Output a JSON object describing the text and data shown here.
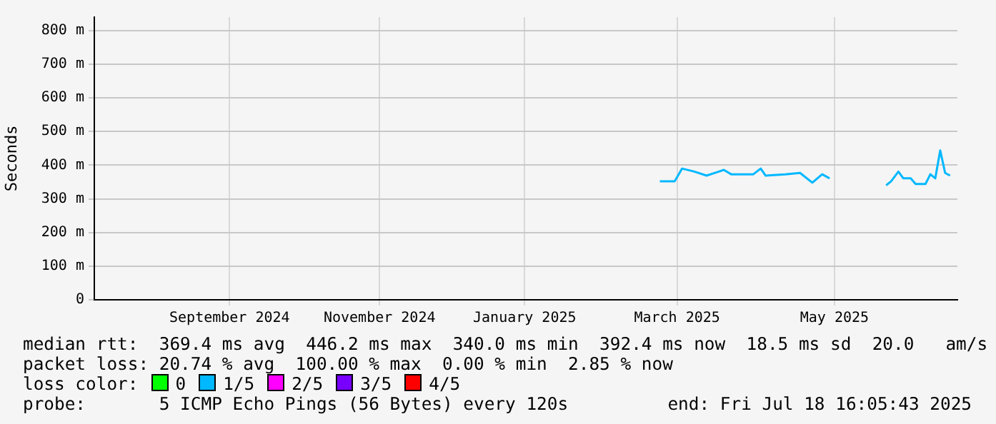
{
  "chart_data": {
    "type": "line",
    "ylabel": "Seconds",
    "x": [
      "2025-03-10",
      "2025-03-16",
      "2025-03-18",
      "2025-03-19",
      "2025-03-24",
      "2025-03-29",
      "2025-04-03",
      "2025-04-05",
      "2025-04-08",
      "2025-04-17",
      "2025-04-20",
      "2025-04-22",
      "2025-04-30",
      "2025-05-06",
      "2025-05-11",
      "2025-05-15",
      "2025-05-18",
      "2025-05-30",
      "2025-06-10",
      "2025-06-12",
      "2025-06-15",
      "2025-06-17",
      "2025-06-20",
      "2025-06-22",
      "2025-06-26",
      "2025-06-28",
      "2025-06-30",
      "2025-07-02",
      "2025-07-04",
      "2025-07-06"
    ],
    "series": [
      {
        "color": "#00b8ff",
        "values": [
          352,
          352,
          377,
          390,
          381,
          369,
          381,
          386,
          373,
          373,
          390,
          369,
          373,
          377,
          348,
          373,
          361,
          null,
          340,
          352,
          381,
          361,
          361,
          344,
          344,
          373,
          361,
          444,
          377,
          369
        ]
      }
    ],
    "xlim": [
      "2024-07-23",
      "2025-07-09"
    ],
    "xticks": [
      {
        "value": "2024-09-16",
        "label": "September 2024"
      },
      {
        "value": "2024-11-16",
        "label": "November 2024"
      },
      {
        "value": "2025-01-14",
        "label": "January 2025"
      },
      {
        "value": "2025-03-17",
        "label": "March 2025"
      },
      {
        "value": "2025-05-20",
        "label": "May 2025"
      }
    ],
    "ylim": [
      0,
      840
    ],
    "yticks": [
      0,
      {
        "value": 100,
        "label": "100 m"
      },
      {
        "value": 200,
        "label": "200 m"
      },
      {
        "value": 300,
        "label": "300 m"
      },
      {
        "value": 400,
        "label": "400 m"
      },
      {
        "value": 500,
        "label": "500 m"
      },
      {
        "value": 600,
        "label": "600 m"
      },
      {
        "value": 700,
        "label": "700 m"
      },
      {
        "value": 800,
        "label": "800 m"
      }
    ],
    "grid": true,
    "marker": "none",
    "line_style": "solid",
    "annotations": [
      "median rtt:  369.4 ms avg  446.2 ms max  340.0 ms min  392.4 ms now  18.5 ms sd  20.0   am/s",
      "packet loss: 20.74 % avg  100.00 % max  0.00 % min  2.85 % now",
      "loss color:",
      "0",
      "1/5",
      "2/5",
      "3/5",
      "4/5",
      "probe:       5 ICMP Echo Pings (56 Bytes) every 120s",
      "end: Fri Jul 18 16:05:43 2025"
    ]
  }
}
